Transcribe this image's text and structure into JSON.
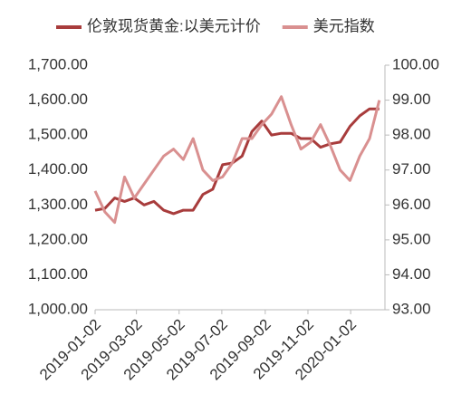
{
  "chart_data": {
    "type": "line",
    "x": [
      "2019-01-02",
      "2019-01-16",
      "2019-01-30",
      "2019-02-13",
      "2019-02-27",
      "2019-03-13",
      "2019-03-27",
      "2019-04-10",
      "2019-04-24",
      "2019-05-08",
      "2019-05-22",
      "2019-06-05",
      "2019-06-19",
      "2019-07-03",
      "2019-07-17",
      "2019-07-31",
      "2019-08-14",
      "2019-08-28",
      "2019-09-11",
      "2019-09-25",
      "2019-10-09",
      "2019-10-23",
      "2019-11-06",
      "2019-11-20",
      "2019-12-04",
      "2019-12-18",
      "2020-01-01",
      "2020-01-15",
      "2020-01-29",
      "2020-02-12"
    ],
    "xlim": [
      "2019-01-02",
      "2020-02-20"
    ],
    "xticks": [
      "2019-01-02",
      "2019-03-02",
      "2019-05-02",
      "2019-07-02",
      "2019-09-02",
      "2019-11-02",
      "2020-01-02"
    ],
    "series": [
      {
        "name": "伦敦现货黄金:以美元计价",
        "color": "#a83c3c",
        "axis": "y",
        "values": [
          1285,
          1290,
          1320,
          1310,
          1320,
          1300,
          1310,
          1285,
          1275,
          1285,
          1285,
          1330,
          1345,
          1415,
          1420,
          1440,
          1510,
          1540,
          1500,
          1505,
          1505,
          1490,
          1490,
          1465,
          1475,
          1480,
          1525,
          1555,
          1575,
          1575
        ]
      },
      {
        "name": "美元指数",
        "color": "#d99090",
        "axis": "y2",
        "values": [
          96.4,
          95.8,
          95.5,
          96.8,
          96.2,
          96.6,
          97.0,
          97.4,
          97.6,
          97.3,
          97.9,
          97.0,
          96.7,
          96.8,
          97.2,
          97.9,
          97.9,
          98.3,
          98.6,
          99.1,
          98.3,
          97.6,
          97.8,
          98.3,
          97.7,
          97.0,
          96.7,
          97.4,
          97.9,
          99.0
        ]
      }
    ],
    "ylim": [
      1000,
      1700
    ],
    "yticks": [
      {
        "value": 1000,
        "label": "1,000.00"
      },
      {
        "value": 1100,
        "label": "1,100.00"
      },
      {
        "value": 1200,
        "label": "1,200.00"
      },
      {
        "value": 1300,
        "label": "1,300.00"
      },
      {
        "value": 1400,
        "label": "1,400.00"
      },
      {
        "value": 1500,
        "label": "1,500.00"
      },
      {
        "value": 1600,
        "label": "1,600.00"
      },
      {
        "value": 1700,
        "label": "1,700.00"
      }
    ],
    "y2lim": [
      93,
      100
    ],
    "y2ticks": [
      {
        "value": 93,
        "label": "93.00"
      },
      {
        "value": 94,
        "label": "94.00"
      },
      {
        "value": 95,
        "label": "95.00"
      },
      {
        "value": 96,
        "label": "96.00"
      },
      {
        "value": 97,
        "label": "97.00"
      },
      {
        "value": 98,
        "label": "98.00"
      },
      {
        "value": 99,
        "label": "99.00"
      },
      {
        "value": 100,
        "label": "100.00"
      }
    ]
  }
}
